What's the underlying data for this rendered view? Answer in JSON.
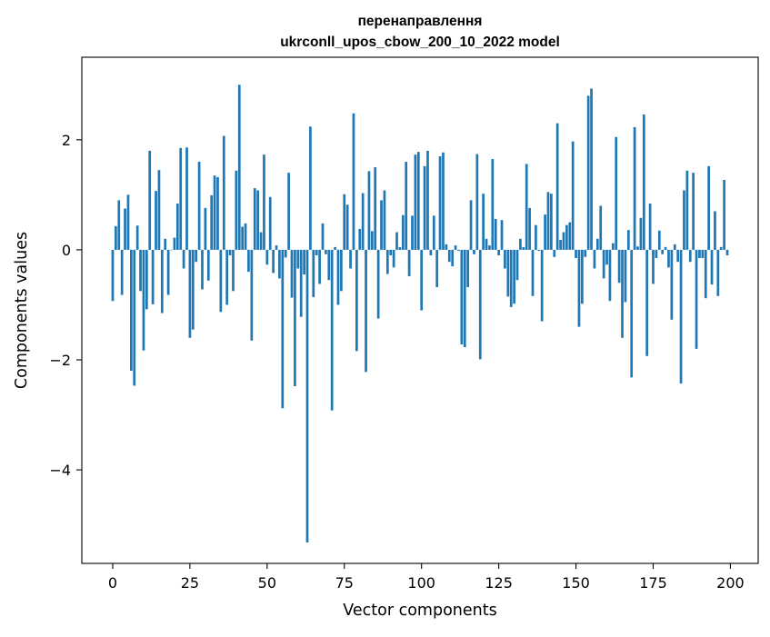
{
  "chart_data": {
    "type": "bar",
    "title_line1": "перенаправлення",
    "title_line2": "ukrconll_upos_cbow_200_10_2022 model",
    "xlabel": "Vector components",
    "ylabel": "Components values",
    "xlim": [
      -10,
      209
    ],
    "ylim": [
      -5.7,
      3.5
    ],
    "xticks": [
      0,
      25,
      50,
      75,
      100,
      125,
      150,
      175,
      200
    ],
    "xtick_labels": [
      "0",
      "25",
      "50",
      "75",
      "100",
      "125",
      "150",
      "175",
      "200"
    ],
    "yticks": [
      -4,
      -2,
      0,
      2
    ],
    "ytick_labels": [
      "−4",
      "−2",
      "0",
      "2"
    ],
    "grid": false,
    "bar_color": "#1f77b4",
    "values": [
      -0.93,
      0.43,
      0.9,
      -0.82,
      0.75,
      1.0,
      -2.2,
      -2.47,
      0.44,
      -0.75,
      -1.83,
      -1.08,
      1.8,
      -0.99,
      1.07,
      1.45,
      -1.15,
      0.2,
      -0.82,
      0.0,
      0.22,
      0.84,
      1.85,
      -0.34,
      1.86,
      -1.6,
      -1.45,
      -0.22,
      1.6,
      -0.72,
      0.76,
      -0.56,
      0.99,
      1.35,
      1.32,
      -1.13,
      2.07,
      -1.0,
      -0.1,
      -0.75,
      1.44,
      3.0,
      0.42,
      0.48,
      -0.4,
      -1.65,
      1.12,
      1.08,
      0.32,
      1.73,
      -0.27,
      0.96,
      -0.42,
      0.08,
      -0.52,
      -2.88,
      -0.14,
      1.4,
      -0.87,
      -2.48,
      -0.34,
      -1.22,
      -0.45,
      -5.32,
      2.24,
      -0.86,
      -0.1,
      -0.62,
      0.48,
      -0.08,
      -0.55,
      -2.92,
      0.05,
      -1.0,
      -0.75,
      1.01,
      0.82,
      -0.34,
      2.48,
      -1.84,
      0.38,
      1.03,
      -2.22,
      1.43,
      0.34,
      1.5,
      -1.25,
      0.9,
      1.08,
      -0.44,
      -0.1,
      -0.32,
      0.32,
      0.05,
      0.63,
      1.6,
      -0.48,
      0.62,
      1.73,
      1.78,
      -1.1,
      1.52,
      1.8,
      -0.1,
      0.62,
      -0.68,
      1.7,
      1.77,
      0.1,
      -0.22,
      -0.3,
      0.08,
      -0.02,
      -1.72,
      -1.77,
      -0.68,
      0.9,
      -0.08,
      1.74,
      -1.99,
      1.02,
      0.2,
      0.08,
      1.65,
      0.56,
      -0.1,
      0.54,
      -0.34,
      -0.85,
      -1.04,
      -0.98,
      -0.55,
      0.2,
      0.05,
      1.56,
      0.76,
      -0.84,
      0.45,
      -0.02,
      -1.3,
      0.64,
      1.05,
      1.02,
      -0.13,
      2.3,
      0.18,
      0.32,
      0.45,
      0.5,
      1.97,
      -0.15,
      -1.4,
      -0.98,
      -0.13,
      2.8,
      2.93,
      -0.34,
      0.2,
      0.8,
      -0.52,
      -0.27,
      -0.93,
      0.12,
      2.05,
      -0.6,
      -1.6,
      -0.95,
      0.36,
      -2.32,
      2.23,
      0.06,
      0.58,
      2.46,
      -1.93,
      0.84,
      -0.62,
      -0.15,
      0.35,
      -0.08,
      0.05,
      -0.32,
      -1.27,
      0.1,
      -0.22,
      -2.43,
      1.08,
      1.44,
      -0.22,
      1.4,
      -1.8,
      -0.15,
      -0.15,
      -0.88,
      1.52,
      -0.63,
      0.7,
      -0.84,
      0.05,
      1.27,
      -0.1
    ]
  }
}
